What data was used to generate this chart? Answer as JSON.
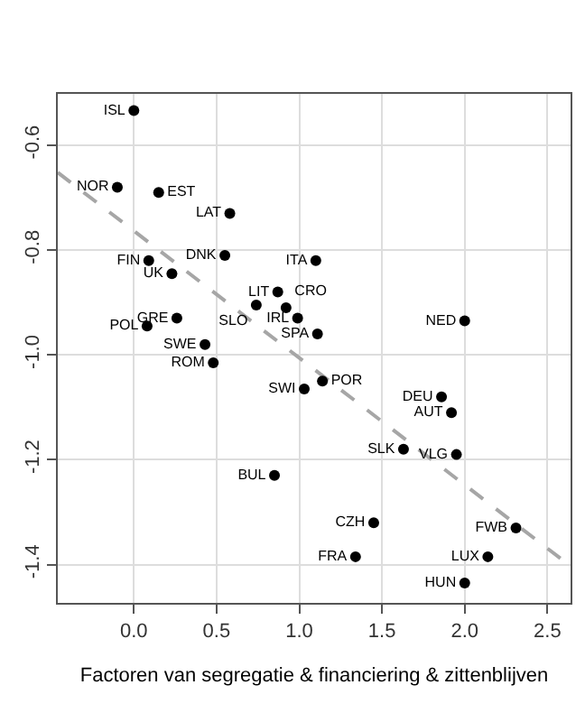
{
  "chart_data": {
    "type": "scatter",
    "xlabel": "Factoren van segregatie & financiering & zittenblijven",
    "xlim": [
      -0.46,
      2.64
    ],
    "ylim": [
      -1.473,
      -0.502
    ],
    "xticks": [
      {
        "value": 0,
        "label": "0.0"
      },
      0.5,
      {
        "value": 1,
        "label": "1.0"
      },
      1.5,
      {
        "value": 2,
        "label": "2.0"
      },
      2.5
    ],
    "yticks": [
      -1.4,
      -1.2,
      {
        "value": -1,
        "label": "-1.0"
      },
      -0.8,
      -0.6
    ],
    "grid": true,
    "marker": "circle",
    "series": [
      {
        "color": "#000000",
        "x": [
          0.0,
          -0.1,
          0.15,
          0.58,
          0.09,
          0.23,
          0.55,
          1.1,
          0.87,
          0.74,
          0.92,
          0.99,
          1.11,
          2.0,
          0.26,
          0.08,
          0.43,
          0.48,
          1.14,
          1.03,
          1.86,
          1.92,
          1.63,
          1.95,
          0.85,
          1.45,
          2.31,
          1.34,
          2.14,
          2.0
        ],
        "values": [
          -0.534,
          -0.68,
          -0.69,
          -0.73,
          -0.82,
          -0.845,
          -0.81,
          -0.82,
          -0.88,
          -0.905,
          -0.91,
          -0.93,
          -0.96,
          -0.935,
          -0.93,
          -0.945,
          -0.98,
          -1.015,
          -1.05,
          -1.065,
          -1.08,
          -1.11,
          -1.18,
          -1.19,
          -1.23,
          -1.32,
          -1.33,
          -1.385,
          -1.385,
          -1.435
        ],
        "value_labels": [
          "ISL",
          "NOR",
          "EST",
          "LAT",
          "FIN",
          "UK",
          "DNK",
          "ITA",
          "LIT",
          "SLO",
          "CRO",
          "IRL",
          "SPA",
          "NED",
          "GRE",
          "POL",
          "SWE",
          "ROM",
          "POR",
          "SWI",
          "DEU",
          "AUT",
          "SLK",
          "VLG",
          "BUL",
          "CZH",
          "FWB",
          "FRA",
          "LUX",
          "HUN"
        ]
      },
      {
        "type": "line",
        "color": "#a6a6a6",
        "line_style": "dashed",
        "marker": "none",
        "x": [
          -0.46,
          2.64
        ],
        "values": [
          -0.652,
          -1.403
        ]
      }
    ]
  }
}
